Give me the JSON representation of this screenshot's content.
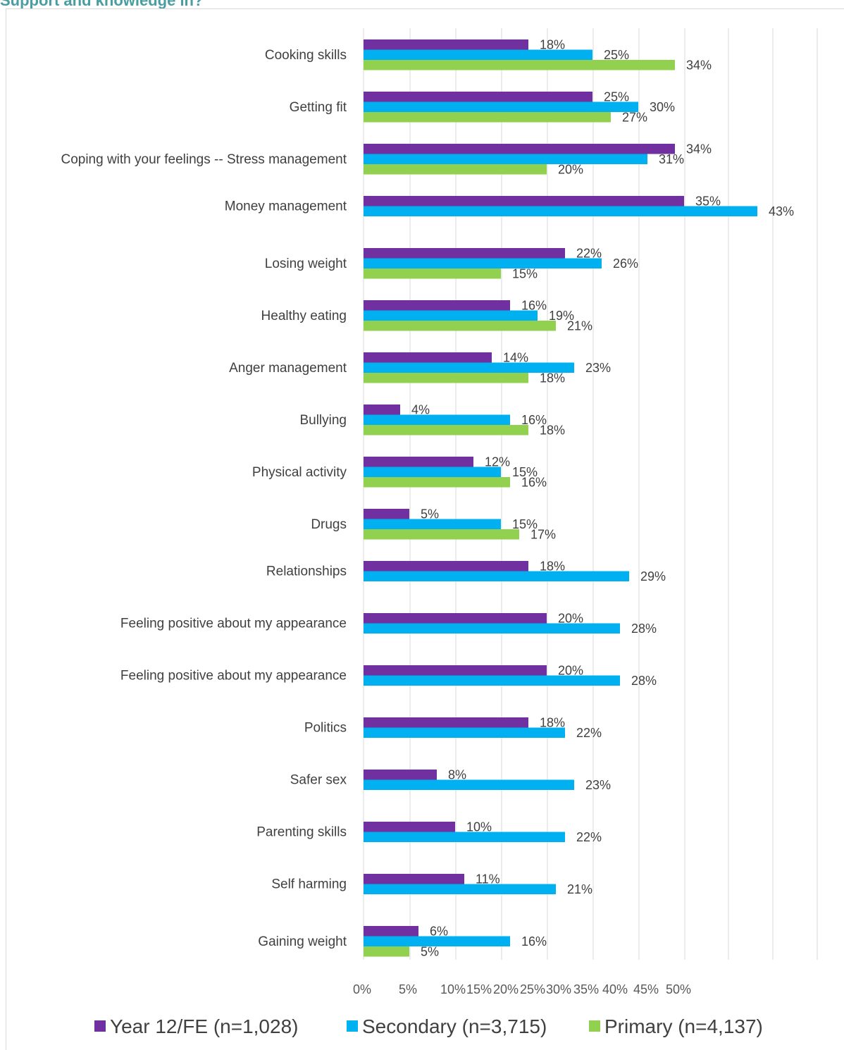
{
  "page": {
    "title": "Support and knowledge in?"
  },
  "chart_data": {
    "type": "bar",
    "orientation": "horizontal",
    "title": "Support and knowledge in?",
    "categories": [
      "Cooking skills",
      "Getting fit",
      "Coping with your feelings -- Stress management",
      "Money management",
      "Losing weight",
      "Healthy eating",
      "Anger management",
      "Bullying",
      "Physical activity",
      "Drugs",
      "Relationships",
      "Feeling positive about my appearance",
      "Feeling positive about my appearance",
      "Politics",
      "Safer sex",
      "Parenting skills",
      "Self harming",
      "Gaining weight"
    ],
    "series": [
      {
        "name": "Year 12/FE (n=1,028)",
        "color": "#7030a0",
        "values": [
          18,
          25,
          34,
          35,
          22,
          16,
          14,
          4,
          12,
          5,
          18,
          20,
          20,
          18,
          8,
          10,
          11,
          6
        ],
        "labels": [
          "18%",
          "25%",
          "34%",
          "35%",
          "22%",
          "16%",
          "14%",
          "4%",
          "12%",
          "5%",
          "18%",
          "20%",
          "20%",
          "18%",
          "8%",
          "10%",
          "11%",
          "6%"
        ]
      },
      {
        "name": "Secondary (n=3,715)",
        "color": "#00b0f0",
        "values": [
          25,
          30,
          31,
          43,
          26,
          19,
          23,
          16,
          15,
          15,
          29,
          28,
          28,
          22,
          23,
          22,
          21,
          16
        ],
        "labels": [
          "25%",
          "30%",
          "31%",
          "43%",
          "26%",
          "19%",
          "23%",
          "16%",
          "15%",
          "15%",
          "29%",
          "28%",
          "28%",
          "22%",
          "23%",
          "22%",
          "21%",
          "16%"
        ]
      },
      {
        "name": "Primary (n=4,137)",
        "color": "#92d050",
        "values": [
          34,
          27,
          20,
          null,
          15,
          21,
          18,
          18,
          16,
          17,
          null,
          null,
          null,
          null,
          null,
          null,
          null,
          5
        ],
        "labels": [
          "34%",
          "27%",
          "20%",
          null,
          "15%",
          "21%",
          "18%",
          "18%",
          "16%",
          "17%",
          null,
          null,
          null,
          null,
          null,
          null,
          null,
          "5%"
        ]
      }
    ],
    "x_ticks": [
      "0%",
      "5%",
      "10%",
      "15%",
      "20%",
      "25%",
      "30%",
      "35%",
      "40%",
      "45%",
      "50%"
    ],
    "xlim": [
      0,
      50
    ],
    "grid": true,
    "legend_position": "bottom",
    "xlabel": "",
    "ylabel": ""
  }
}
